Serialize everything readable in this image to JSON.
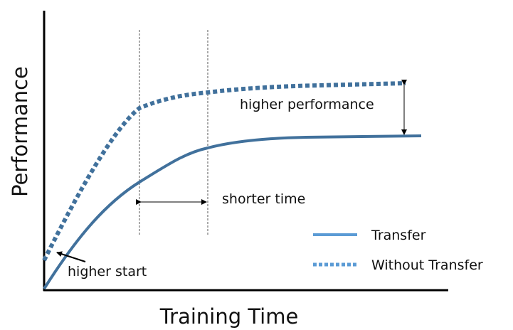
{
  "axes": {
    "y_label": "Performance",
    "x_label": "Training Time"
  },
  "annotations": {
    "higher_performance": "higher performance",
    "shorter_time": "shorter time",
    "higher_start": "higher start"
  },
  "legend": {
    "items": [
      {
        "label": "Transfer"
      },
      {
        "label": "Without Transfer"
      }
    ]
  }
}
